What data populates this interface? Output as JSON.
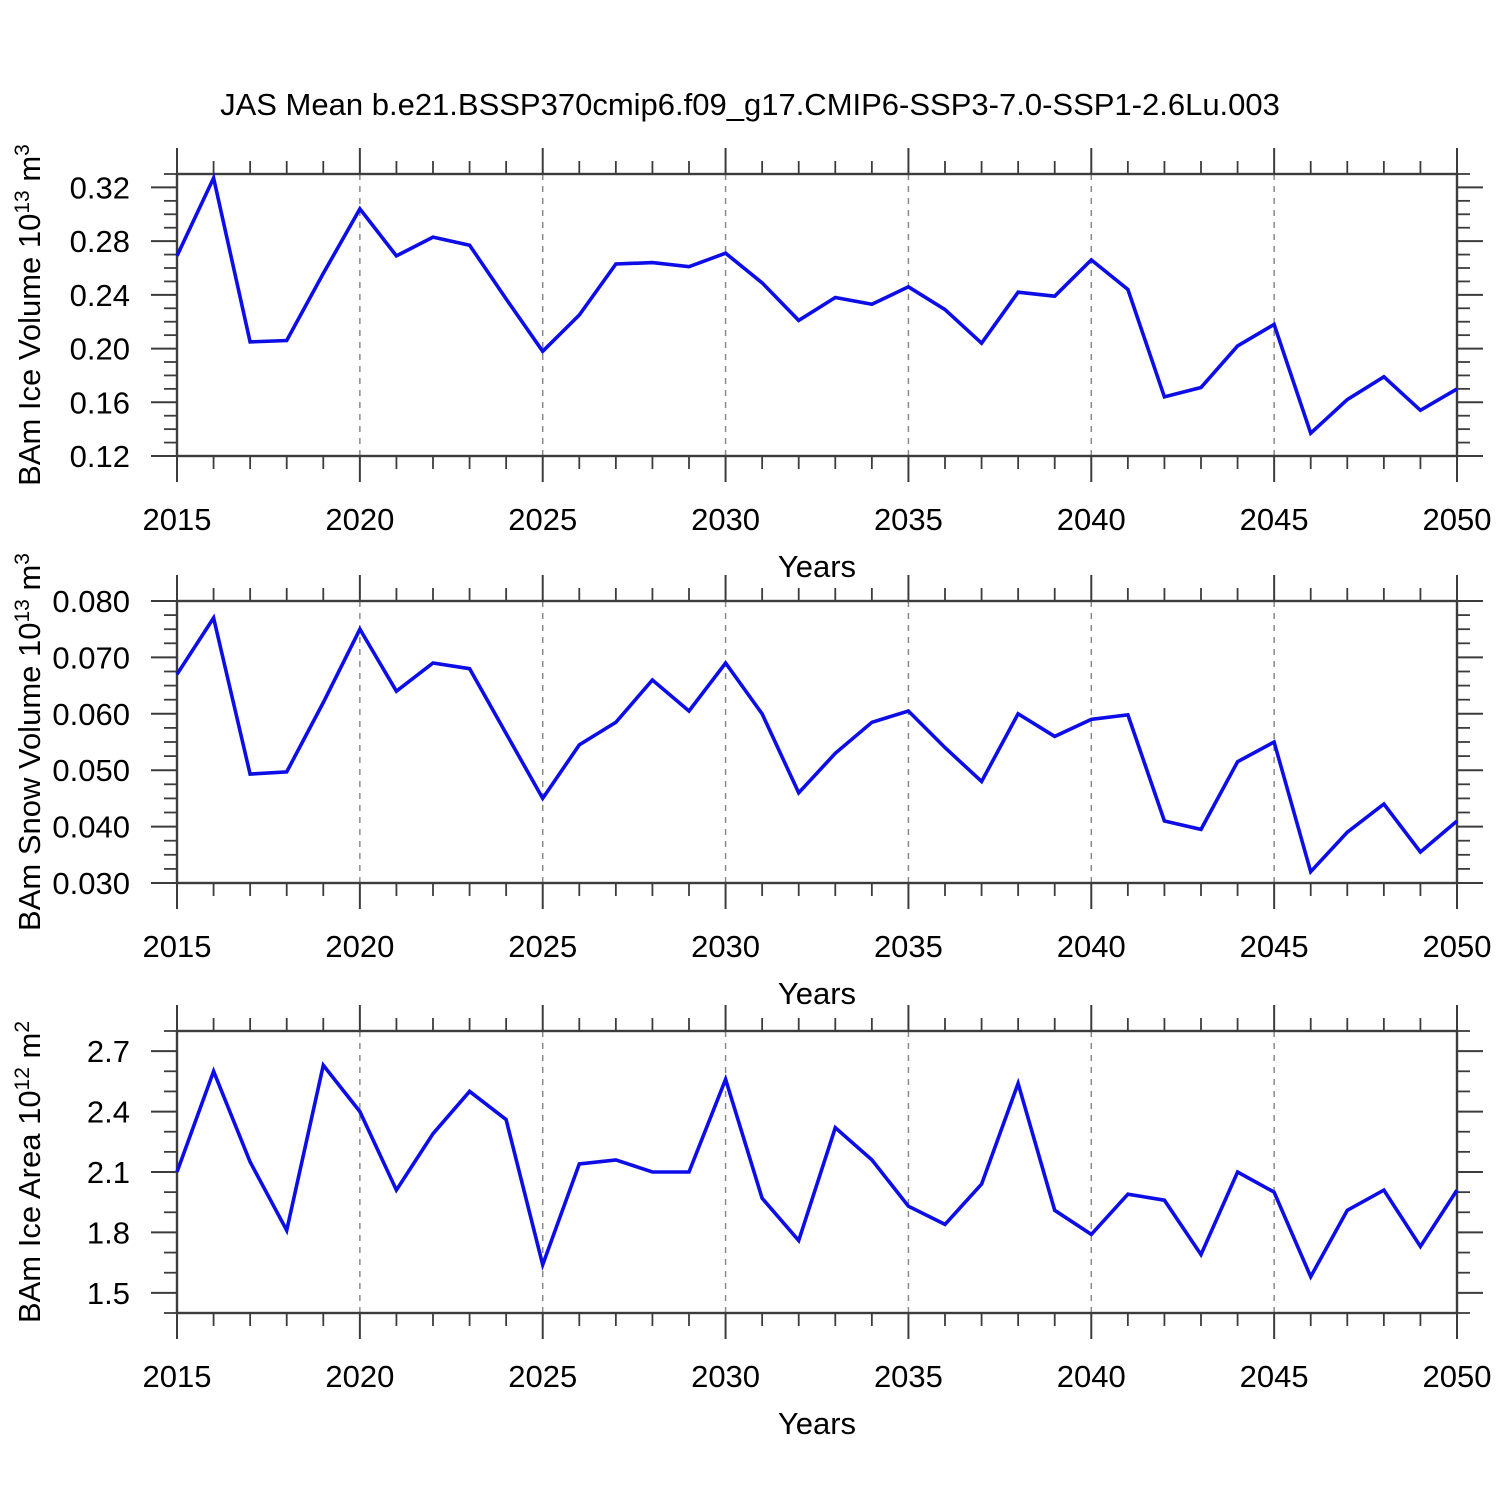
{
  "title": "JAS Mean b.e21.BSSP370cmip6.f09_g17.CMIP6-SSP3-7.0-SSP1-2.6Lu.003",
  "colors": {
    "line": "#0d0de8",
    "axis": "#3c3c3c",
    "grid": "#8a8a8a",
    "text": "#000000",
    "background": "#ffffff"
  },
  "chart_data": [
    {
      "type": "line",
      "name": "bam-ice-volume",
      "ylabel_plain": "BAm Ice Volume 10^13 m^3",
      "ylabel_segments": [
        {
          "t": "BAm Ice Volume 10",
          "sup": false
        },
        {
          "t": "13",
          "sup": true
        },
        {
          "t": " m",
          "sup": false
        },
        {
          "t": "3",
          "sup": true
        }
      ],
      "xlabel": "Years",
      "x": [
        2015,
        2016,
        2017,
        2018,
        2019,
        2020,
        2021,
        2022,
        2023,
        2024,
        2025,
        2026,
        2027,
        2028,
        2029,
        2030,
        2031,
        2032,
        2033,
        2034,
        2035,
        2036,
        2037,
        2038,
        2039,
        2040,
        2041,
        2042,
        2043,
        2044,
        2045,
        2046,
        2047,
        2048,
        2049,
        2050
      ],
      "values": [
        0.269,
        0.327,
        0.205,
        0.206,
        0.256,
        0.304,
        0.269,
        0.283,
        0.277,
        0.237,
        0.198,
        0.225,
        0.263,
        0.264,
        0.261,
        0.271,
        0.249,
        0.221,
        0.238,
        0.233,
        0.246,
        0.229,
        0.204,
        0.242,
        0.239,
        0.266,
        0.244,
        0.164,
        0.171,
        0.202,
        0.218,
        0.137,
        0.162,
        0.179,
        0.154,
        0.17
      ],
      "xlim": [
        2015,
        2050
      ],
      "ylim": [
        0.12,
        0.33
      ],
      "yticks": [
        0.12,
        0.16,
        0.2,
        0.24,
        0.28,
        0.32
      ],
      "ytick_labels": [
        "0.12",
        "0.16",
        "0.20",
        "0.24",
        "0.28",
        "0.32"
      ],
      "y_minor_step": 0.01,
      "xticks": [
        2015,
        2020,
        2025,
        2030,
        2035,
        2040,
        2045,
        2050
      ],
      "xtick_labels": [
        "2015",
        "2020",
        "2025",
        "2030",
        "2035",
        "2040",
        "2045",
        "2050"
      ],
      "x_minor_step": 1,
      "grid_lines_x": [
        2020,
        2025,
        2030,
        2035,
        2040,
        2045
      ],
      "grid_style": "dashed-vertical"
    },
    {
      "type": "line",
      "name": "bam-snow-volume",
      "ylabel_plain": "BAm Snow Volume 10^13 m^3",
      "ylabel_segments": [
        {
          "t": "BAm Snow Volume 10",
          "sup": false
        },
        {
          "t": "13",
          "sup": true
        },
        {
          "t": " m",
          "sup": false
        },
        {
          "t": "3",
          "sup": true
        }
      ],
      "xlabel": "Years",
      "x": [
        2015,
        2016,
        2017,
        2018,
        2019,
        2020,
        2021,
        2022,
        2023,
        2024,
        2025,
        2026,
        2027,
        2028,
        2029,
        2030,
        2031,
        2032,
        2033,
        2034,
        2035,
        2036,
        2037,
        2038,
        2039,
        2040,
        2041,
        2042,
        2043,
        2044,
        2045,
        2046,
        2047,
        2048,
        2049,
        2050
      ],
      "values": [
        0.067,
        0.077,
        0.0493,
        0.0497,
        0.062,
        0.075,
        0.064,
        0.069,
        0.068,
        0.0565,
        0.045,
        0.0545,
        0.0585,
        0.066,
        0.0605,
        0.069,
        0.06,
        0.046,
        0.053,
        0.0585,
        0.0605,
        0.054,
        0.048,
        0.06,
        0.056,
        0.059,
        0.0598,
        0.041,
        0.0395,
        0.0515,
        0.055,
        0.032,
        0.039,
        0.044,
        0.0355,
        0.041
      ],
      "xlim": [
        2015,
        2050
      ],
      "ylim": [
        0.03,
        0.08
      ],
      "yticks": [
        0.03,
        0.04,
        0.05,
        0.06,
        0.07,
        0.08
      ],
      "ytick_labels": [
        "0.030",
        "0.040",
        "0.050",
        "0.060",
        "0.070",
        "0.080"
      ],
      "y_minor_step": 0.0025,
      "xticks": [
        2015,
        2020,
        2025,
        2030,
        2035,
        2040,
        2045,
        2050
      ],
      "xtick_labels": [
        "2015",
        "2020",
        "2025",
        "2030",
        "2035",
        "2040",
        "2045",
        "2050"
      ],
      "x_minor_step": 1,
      "grid_lines_x": [
        2020,
        2025,
        2030,
        2035,
        2040,
        2045
      ],
      "grid_style": "dashed-vertical"
    },
    {
      "type": "line",
      "name": "bam-ice-area",
      "ylabel_plain": "BAm Ice Area 10^12 m^2",
      "ylabel_segments": [
        {
          "t": "BAm Ice Area 10",
          "sup": false
        },
        {
          "t": "12",
          "sup": true
        },
        {
          "t": " m",
          "sup": false
        },
        {
          "t": "2",
          "sup": true
        }
      ],
      "xlabel": "Years",
      "x": [
        2015,
        2016,
        2017,
        2018,
        2019,
        2020,
        2021,
        2022,
        2023,
        2024,
        2025,
        2026,
        2027,
        2028,
        2029,
        2030,
        2031,
        2032,
        2033,
        2034,
        2035,
        2036,
        2037,
        2038,
        2039,
        2040,
        2041,
        2042,
        2043,
        2044,
        2045,
        2046,
        2047,
        2048,
        2049,
        2050
      ],
      "values": [
        2.1,
        2.6,
        2.15,
        1.81,
        2.63,
        2.4,
        2.01,
        2.29,
        2.5,
        2.36,
        1.64,
        2.14,
        2.16,
        2.1,
        2.1,
        2.56,
        1.97,
        1.76,
        2.32,
        2.16,
        1.93,
        1.84,
        2.04,
        2.54,
        1.91,
        1.79,
        1.99,
        1.96,
        1.69,
        2.1,
        2.0,
        1.58,
        1.91,
        2.01,
        1.73,
        2.01
      ],
      "xlim": [
        2015,
        2050
      ],
      "ylim": [
        1.4,
        2.8
      ],
      "yticks": [
        1.5,
        1.8,
        2.1,
        2.4,
        2.7
      ],
      "ytick_labels": [
        "1.5",
        "1.8",
        "2.1",
        "2.4",
        "2.7"
      ],
      "y_minor_step": 0.1,
      "xticks": [
        2015,
        2020,
        2025,
        2030,
        2035,
        2040,
        2045,
        2050
      ],
      "xtick_labels": [
        "2015",
        "2020",
        "2025",
        "2030",
        "2035",
        "2040",
        "2045",
        "2050"
      ],
      "x_minor_step": 1,
      "grid_lines_x": [
        2020,
        2025,
        2030,
        2035,
        2040,
        2045
      ],
      "grid_style": "dashed-vertical"
    }
  ]
}
